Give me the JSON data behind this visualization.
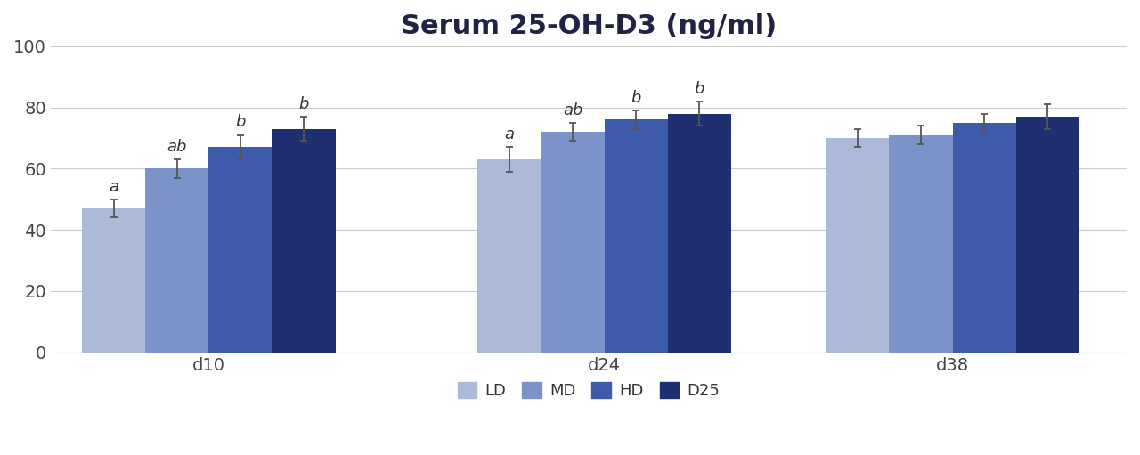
{
  "title": "Serum 25-OH-D3 (ng/ml)",
  "groups": [
    "d10",
    "d24",
    "d38"
  ],
  "series": [
    "LD",
    "MD",
    "HD",
    "D25"
  ],
  "colors": [
    "#adb9d8",
    "#7b93c8",
    "#3d5aab",
    "#1e3070"
  ],
  "values": {
    "d10": [
      47,
      60,
      67,
      73
    ],
    "d24": [
      63,
      72,
      76,
      78
    ],
    "d38": [
      70,
      71,
      75,
      77
    ]
  },
  "errors": {
    "d10": [
      3,
      3,
      4,
      4
    ],
    "d24": [
      4,
      3,
      3,
      4
    ],
    "d38": [
      3,
      3,
      3,
      4
    ]
  },
  "sig_labels": {
    "d10": [
      "a",
      "ab",
      "b",
      "b"
    ],
    "d24": [
      "a",
      "ab",
      "b",
      "b"
    ],
    "d38": [
      "",
      "",
      "",
      ""
    ]
  },
  "ylim": [
    0,
    100
  ],
  "yticks": [
    0,
    20,
    40,
    60,
    80,
    100
  ],
  "background_color": "#ffffff",
  "plot_bg_color": "#ffffff",
  "bar_width": 0.2,
  "title_fontsize": 22,
  "tick_fontsize": 14,
  "label_fontsize": 14,
  "legend_fontsize": 13,
  "sig_fontsize": 13
}
